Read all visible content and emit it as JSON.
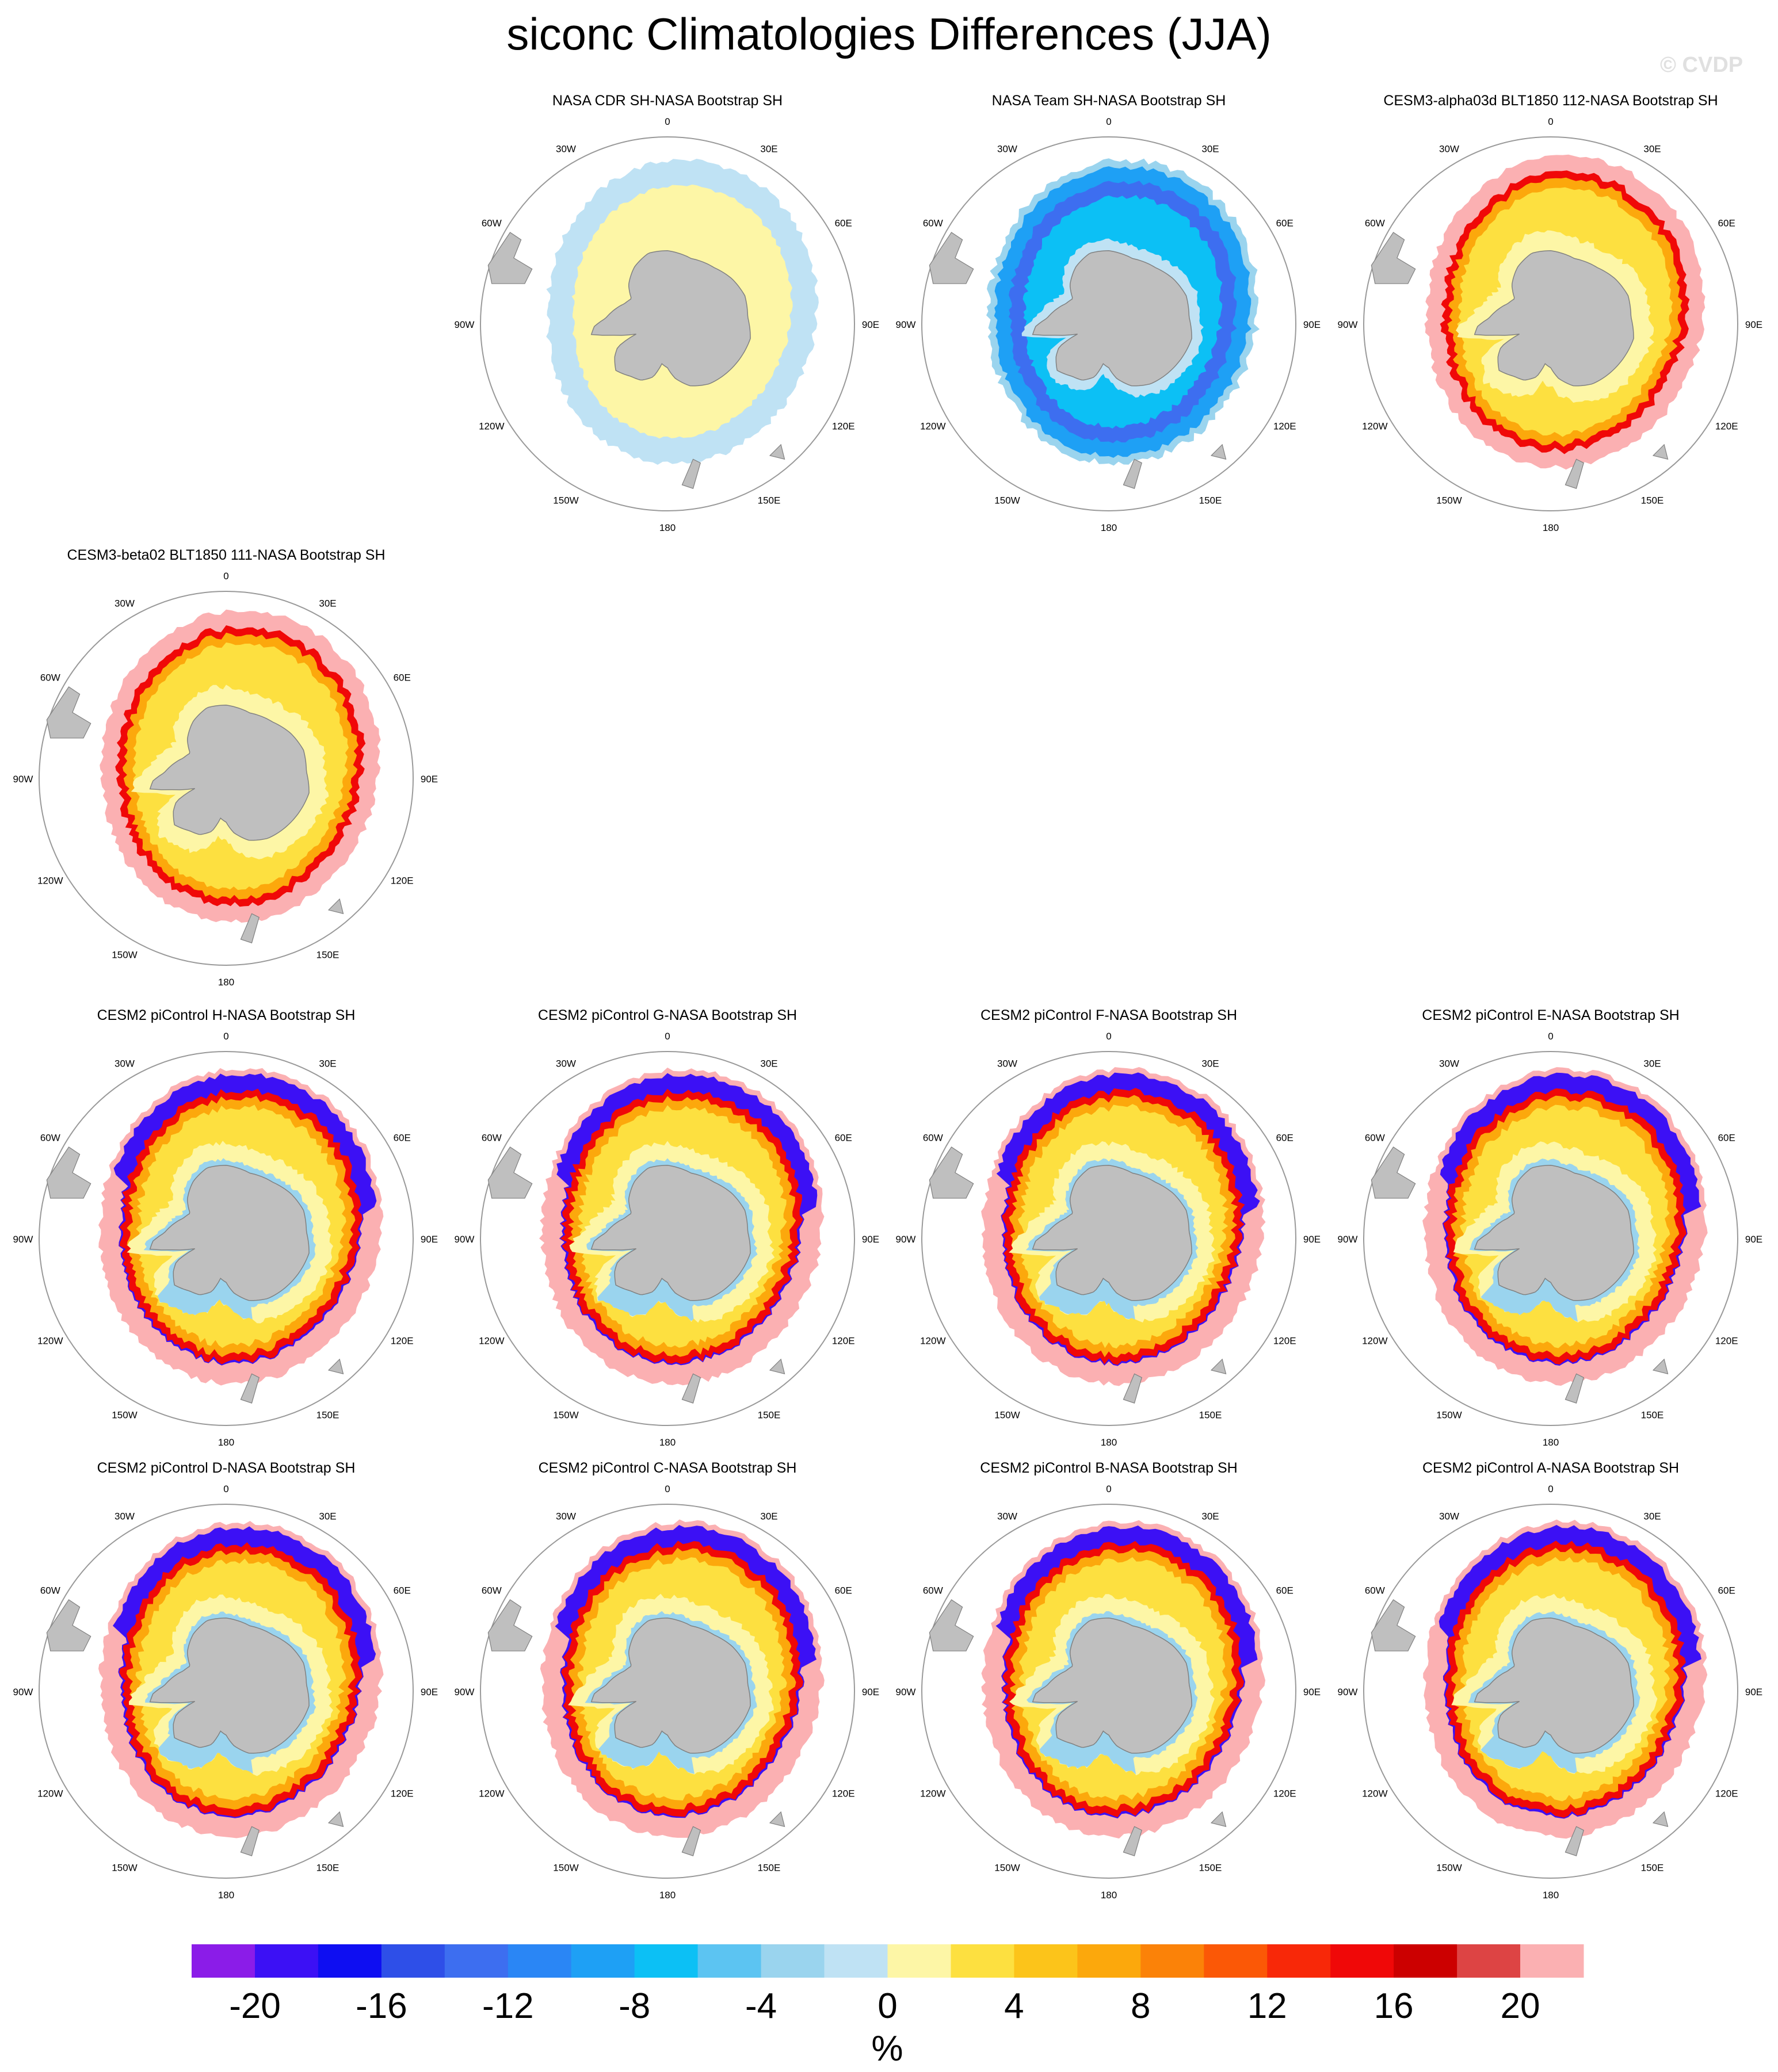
{
  "title": "siconc Climatologies Differences (JJA)",
  "watermark": "© CVDP",
  "panels": [
    {
      "title": "NASA CDR SH-NASA Bootstrap SH",
      "row": 0,
      "col": 1,
      "pattern": "cdr"
    },
    {
      "title": "NASA Team SH-NASA Bootstrap SH",
      "row": 0,
      "col": 2,
      "pattern": "team"
    },
    {
      "title": "CESM3-alpha03d BLT1850 112-NASA Bootstrap SH",
      "row": 0,
      "col": 3,
      "pattern": "cesm3"
    },
    {
      "title": "CESM3-beta02 BLT1850 111-NASA Bootstrap SH",
      "row": 1,
      "col": 0,
      "pattern": "cesm3"
    },
    {
      "title": "CESM2 piControl H-NASA Bootstrap SH",
      "row": 2,
      "col": 0,
      "pattern": "cesm2"
    },
    {
      "title": "CESM2 piControl G-NASA Bootstrap SH",
      "row": 2,
      "col": 1,
      "pattern": "cesm2"
    },
    {
      "title": "CESM2 piControl F-NASA Bootstrap SH",
      "row": 2,
      "col": 2,
      "pattern": "cesm2"
    },
    {
      "title": "CESM2 piControl E-NASA Bootstrap SH",
      "row": 2,
      "col": 3,
      "pattern": "cesm2"
    },
    {
      "title": "CESM2 piControl D-NASA Bootstrap SH",
      "row": 3,
      "col": 0,
      "pattern": "cesm2"
    },
    {
      "title": "CESM2 piControl C-NASA Bootstrap SH",
      "row": 3,
      "col": 1,
      "pattern": "cesm2"
    },
    {
      "title": "CESM2 piControl B-NASA Bootstrap SH",
      "row": 3,
      "col": 2,
      "pattern": "cesm2"
    },
    {
      "title": "CESM2 piControl A-NASA Bootstrap SH",
      "row": 3,
      "col": 3,
      "pattern": "cesm2"
    }
  ],
  "map_labels": [
    {
      "text": "0",
      "lon": 0
    },
    {
      "text": "30E",
      "lon": 30
    },
    {
      "text": "60E",
      "lon": 60
    },
    {
      "text": "90E",
      "lon": 90
    },
    {
      "text": "120E",
      "lon": 120
    },
    {
      "text": "150E",
      "lon": 150
    },
    {
      "text": "180",
      "lon": 180
    },
    {
      "text": "150W",
      "lon": 210
    },
    {
      "text": "120W",
      "lon": 240
    },
    {
      "text": "90W",
      "lon": 270
    },
    {
      "text": "60W",
      "lon": 300
    },
    {
      "text": "30W",
      "lon": 330
    }
  ],
  "chart_data": {
    "type": "heatmap",
    "projection": "south polar stereographic",
    "variable": "siconc",
    "season": "JJA",
    "colorbar": {
      "unit": "%",
      "tick_labels": [
        "-20",
        "-16",
        "-12",
        "-8",
        "-4",
        "0",
        "4",
        "8",
        "12",
        "16",
        "20"
      ],
      "colors": [
        "#8b1ce8",
        "#3c10f5",
        "#0e0ef2",
        "#2e4fe8",
        "#3d6ef0",
        "#2a86f5",
        "#1ea0f5",
        "#0cc0f5",
        "#5cc4f2",
        "#9ad4ee",
        "#bfe2f4",
        "#fdf6a6",
        "#fde040",
        "#fcc41a",
        "#fca80c",
        "#fb8208",
        "#fb5806",
        "#f82808",
        "#f00808",
        "#cc0000",
        "#dd4444",
        "#fbb0b2"
      ]
    },
    "colors": {
      "land": "#bfbfbf",
      "coast_line": "#808080",
      "circle": "#999999"
    }
  }
}
